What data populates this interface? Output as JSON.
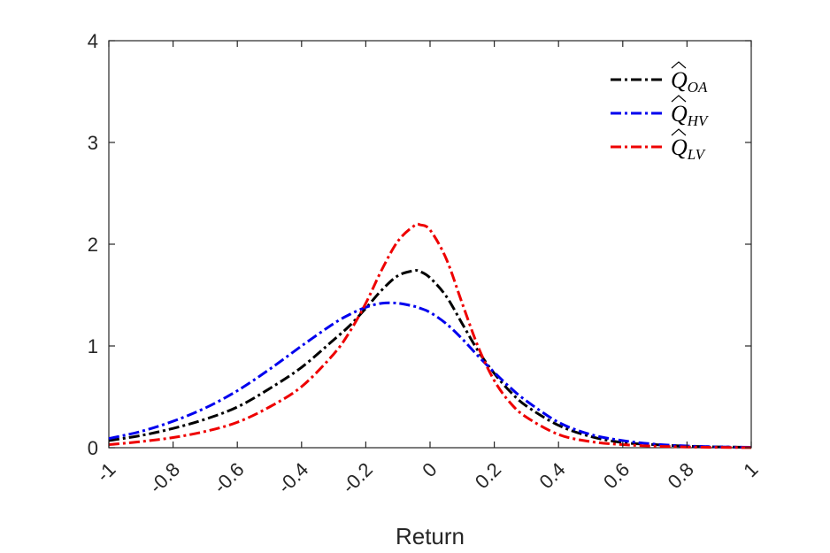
{
  "chart_data": {
    "type": "line",
    "title": "",
    "xlabel": "Return",
    "ylabel": "",
    "xlim": [
      -1,
      1
    ],
    "ylim": [
      0,
      4
    ],
    "xticks": [
      -1,
      -0.8,
      -0.6,
      -0.4,
      -0.2,
      0,
      0.2,
      0.4,
      0.6,
      0.8,
      1
    ],
    "xtick_labels": [
      "-1",
      "-0.8",
      "-0.6",
      "-0.4",
      "-0.2",
      "0",
      "0.2",
      "0.4",
      "0.6",
      "0.8",
      "1"
    ],
    "yticks": [
      0,
      1,
      2,
      3,
      4
    ],
    "ytick_labels": [
      "0",
      "1",
      "2",
      "3",
      "4"
    ],
    "grid": false,
    "legend_position": "top-right",
    "line_style": "dash-dot",
    "x": [
      -1.0,
      -0.9,
      -0.8,
      -0.7,
      -0.6,
      -0.5,
      -0.4,
      -0.3,
      -0.25,
      -0.2,
      -0.15,
      -0.1,
      -0.05,
      -0.03,
      0.0,
      0.05,
      0.1,
      0.15,
      0.2,
      0.25,
      0.3,
      0.4,
      0.5,
      0.6,
      0.7,
      0.8,
      0.9,
      1.0
    ],
    "series": [
      {
        "name": "OA",
        "legend_symbol": "Q",
        "legend_subscript": "OA",
        "color": "#000000",
        "values": [
          0.07,
          0.12,
          0.19,
          0.28,
          0.4,
          0.58,
          0.79,
          1.06,
          1.2,
          1.37,
          1.55,
          1.69,
          1.74,
          1.73,
          1.67,
          1.49,
          1.22,
          0.95,
          0.73,
          0.55,
          0.41,
          0.22,
          0.11,
          0.05,
          0.03,
          0.015,
          0.008,
          0.004
        ]
      },
      {
        "name": "HV",
        "legend_symbol": "Q",
        "legend_subscript": "HV",
        "color": "#0000ee",
        "values": [
          0.09,
          0.16,
          0.26,
          0.39,
          0.56,
          0.77,
          1.0,
          1.22,
          1.31,
          1.38,
          1.42,
          1.42,
          1.39,
          1.37,
          1.33,
          1.22,
          1.07,
          0.9,
          0.74,
          0.59,
          0.46,
          0.25,
          0.13,
          0.07,
          0.035,
          0.017,
          0.008,
          0.004
        ]
      },
      {
        "name": "LV",
        "legend_symbol": "Q",
        "legend_subscript": "LV",
        "color": "#ee0000",
        "values": [
          0.03,
          0.06,
          0.1,
          0.16,
          0.25,
          0.4,
          0.6,
          0.92,
          1.14,
          1.42,
          1.75,
          2.03,
          2.18,
          2.19,
          2.14,
          1.86,
          1.42,
          0.99,
          0.66,
          0.44,
          0.3,
          0.13,
          0.06,
          0.03,
          0.015,
          0.007,
          0.003,
          0.001
        ]
      }
    ]
  }
}
